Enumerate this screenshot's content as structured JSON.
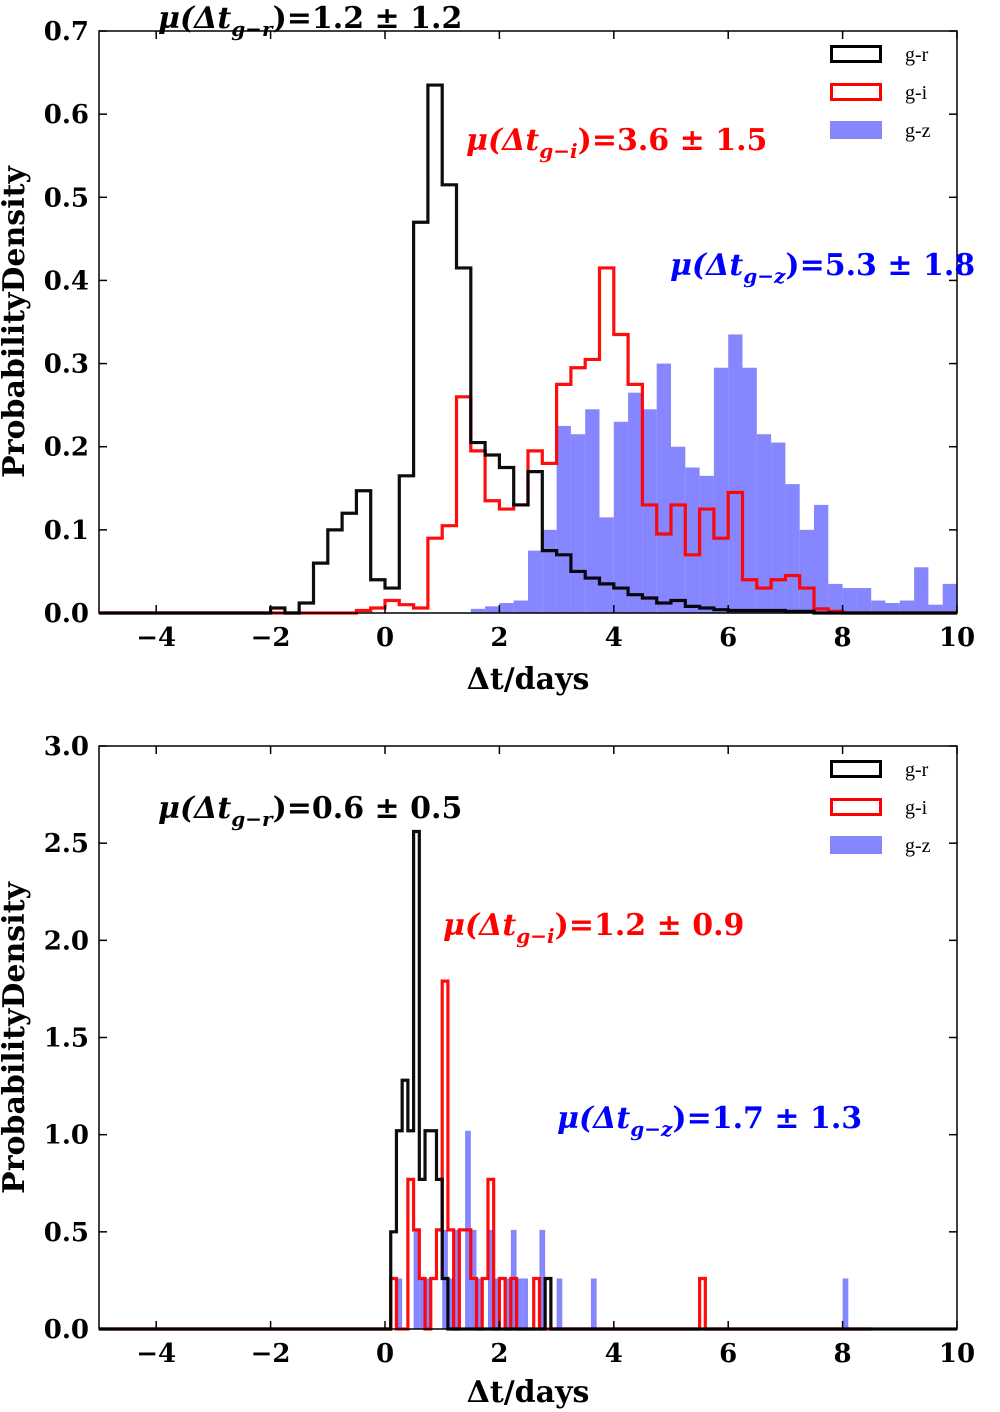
{
  "chart_data": [
    {
      "type": "histogram",
      "xlabel": "Δt/days",
      "ylabel": "ProbabilityDensity",
      "xlim": [
        -5,
        10
      ],
      "ylim": [
        0,
        0.7
      ],
      "xticks": [
        "−4",
        "−2",
        "0",
        "2",
        "4",
        "6",
        "8",
        "10"
      ],
      "yticks": [
        "0.0",
        "0.1",
        "0.2",
        "0.3",
        "0.4",
        "0.5",
        "0.6",
        "0.7"
      ],
      "legend": [
        "g-r",
        "g-i",
        "g-z"
      ],
      "colors": {
        "g-r": "#000000",
        "g-i": "#ff0000",
        "g-z": "#6b6bff"
      },
      "annotations": {
        "g-r": {
          "prefix": "μ(Δt",
          "sub": "g−r",
          "suffix": ")=1.2 ± 1.2"
        },
        "g-i": {
          "prefix": "μ(Δt",
          "sub": "g−i",
          "suffix": ")=3.6 ± 1.5"
        },
        "g-z": {
          "prefix": "μ(Δt",
          "sub": "g−z",
          "suffix": ")=5.3 ± 1.8"
        }
      },
      "series": [
        {
          "name": "g-r",
          "style": "step",
          "bins": [
            [
              -5.0,
              0.0
            ],
            [
              -2.0,
              0.006
            ],
            [
              -1.75,
              0.0
            ],
            [
              -1.5,
              0.012
            ],
            [
              -1.25,
              0.06
            ],
            [
              -1.0,
              0.1
            ],
            [
              -0.75,
              0.12
            ],
            [
              -0.5,
              0.147
            ],
            [
              -0.25,
              0.04
            ],
            [
              0.0,
              0.03
            ],
            [
              0.25,
              0.165
            ],
            [
              0.5,
              0.47
            ],
            [
              0.75,
              0.635
            ],
            [
              1.0,
              0.515
            ],
            [
              1.25,
              0.415
            ],
            [
              1.5,
              0.205
            ],
            [
              1.75,
              0.19
            ],
            [
              2.0,
              0.175
            ],
            [
              2.25,
              0.13
            ],
            [
              2.5,
              0.17
            ],
            [
              2.75,
              0.075
            ],
            [
              3.0,
              0.07
            ],
            [
              3.25,
              0.05
            ],
            [
              3.5,
              0.042
            ],
            [
              3.75,
              0.035
            ],
            [
              4.0,
              0.03
            ],
            [
              4.25,
              0.022
            ],
            [
              4.5,
              0.018
            ],
            [
              4.75,
              0.012
            ],
            [
              5.0,
              0.015
            ],
            [
              5.25,
              0.008
            ],
            [
              5.5,
              0.006
            ],
            [
              5.75,
              0.004
            ],
            [
              6.0,
              0.003
            ],
            [
              6.5,
              0.003
            ],
            [
              7.0,
              0.002
            ],
            [
              7.5,
              0.0
            ],
            [
              10.0,
              0.0
            ]
          ]
        },
        {
          "name": "g-i",
          "style": "step",
          "bins": [
            [
              -5.0,
              0.0
            ],
            [
              -0.5,
              0.003
            ],
            [
              -0.25,
              0.006
            ],
            [
              0.0,
              0.015
            ],
            [
              0.25,
              0.01
            ],
            [
              0.5,
              0.006
            ],
            [
              0.75,
              0.09
            ],
            [
              1.0,
              0.105
            ],
            [
              1.25,
              0.26
            ],
            [
              1.5,
              0.195
            ],
            [
              1.75,
              0.135
            ],
            [
              2.0,
              0.125
            ],
            [
              2.25,
              0.13
            ],
            [
              2.5,
              0.195
            ],
            [
              2.75,
              0.18
            ],
            [
              3.0,
              0.275
            ],
            [
              3.25,
              0.295
            ],
            [
              3.5,
              0.305
            ],
            [
              3.75,
              0.415
            ],
            [
              4.0,
              0.335
            ],
            [
              4.25,
              0.275
            ],
            [
              4.5,
              0.13
            ],
            [
              4.75,
              0.095
            ],
            [
              5.0,
              0.13
            ],
            [
              5.25,
              0.07
            ],
            [
              5.5,
              0.125
            ],
            [
              5.75,
              0.09
            ],
            [
              6.0,
              0.145
            ],
            [
              6.25,
              0.04
            ],
            [
              6.5,
              0.03
            ],
            [
              6.75,
              0.04
            ],
            [
              7.0,
              0.045
            ],
            [
              7.25,
              0.03
            ],
            [
              7.5,
              0.005
            ],
            [
              7.75,
              0.002
            ],
            [
              8.0,
              0.0
            ],
            [
              10.0,
              0.0
            ]
          ]
        },
        {
          "name": "g-z",
          "style": "filled",
          "bins": [
            [
              1.5,
              0.005
            ],
            [
              1.75,
              0.008
            ],
            [
              2.0,
              0.012
            ],
            [
              2.25,
              0.015
            ],
            [
              2.5,
              0.075
            ],
            [
              2.75,
              0.1
            ],
            [
              3.0,
              0.225
            ],
            [
              3.25,
              0.215
            ],
            [
              3.5,
              0.245
            ],
            [
              3.75,
              0.115
            ],
            [
              4.0,
              0.23
            ],
            [
              4.25,
              0.265
            ],
            [
              4.5,
              0.245
            ],
            [
              4.75,
              0.3
            ],
            [
              5.0,
              0.2
            ],
            [
              5.25,
              0.175
            ],
            [
              5.5,
              0.165
            ],
            [
              5.75,
              0.295
            ],
            [
              6.0,
              0.335
            ],
            [
              6.25,
              0.295
            ],
            [
              6.5,
              0.215
            ],
            [
              6.75,
              0.205
            ],
            [
              7.0,
              0.155
            ],
            [
              7.25,
              0.1
            ],
            [
              7.5,
              0.13
            ],
            [
              7.75,
              0.035
            ],
            [
              8.0,
              0.03
            ],
            [
              8.25,
              0.03
            ],
            [
              8.5,
              0.015
            ],
            [
              8.75,
              0.012
            ],
            [
              9.0,
              0.015
            ],
            [
              9.25,
              0.055
            ],
            [
              9.5,
              0.01
            ],
            [
              9.75,
              0.035
            ],
            [
              10.0,
              0.0
            ]
          ]
        }
      ]
    },
    {
      "type": "histogram",
      "xlabel": "Δt/days",
      "ylabel": "ProbabilityDensity",
      "xlim": [
        -5,
        10
      ],
      "ylim": [
        0,
        3.0
      ],
      "xticks": [
        "−4",
        "−2",
        "0",
        "2",
        "4",
        "6",
        "8",
        "10"
      ],
      "yticks": [
        "0.0",
        "0.5",
        "1.0",
        "1.5",
        "2.0",
        "2.5",
        "3.0"
      ],
      "legend": [
        "g-r",
        "g-i",
        "g-z"
      ],
      "colors": {
        "g-r": "#000000",
        "g-i": "#ff0000",
        "g-z": "#6b6bff"
      },
      "annotations": {
        "g-r": {
          "prefix": "μ(Δt",
          "sub": "g−r",
          "suffix": ")=0.6 ± 0.5"
        },
        "g-i": {
          "prefix": "μ(Δt",
          "sub": "g−i",
          "suffix": ")=1.2 ± 0.9"
        },
        "g-z": {
          "prefix": "μ(Δt",
          "sub": "g−z",
          "suffix": ")=1.7 ± 1.3"
        }
      },
      "series": [
        {
          "name": "g-r",
          "style": "step",
          "bins": [
            [
              -5.0,
              0.0
            ],
            [
              0.1,
              0.5
            ],
            [
              0.2,
              1.02
            ],
            [
              0.3,
              1.28
            ],
            [
              0.4,
              1.02
            ],
            [
              0.5,
              2.56
            ],
            [
              0.6,
              0.77
            ],
            [
              0.7,
              1.02
            ],
            [
              0.8,
              1.02
            ],
            [
              0.9,
              0.77
            ],
            [
              1.0,
              0.26
            ],
            [
              1.1,
              0.0
            ],
            [
              2.8,
              0.26
            ],
            [
              2.9,
              0.0
            ],
            [
              10.0,
              0.0
            ]
          ]
        },
        {
          "name": "g-i",
          "style": "step",
          "bins": [
            [
              -5.0,
              0.0
            ],
            [
              0.1,
              0.26
            ],
            [
              0.2,
              0.0
            ],
            [
              0.4,
              0.77
            ],
            [
              0.5,
              0.51
            ],
            [
              0.6,
              0.26
            ],
            [
              0.7,
              0.0
            ],
            [
              0.8,
              0.26
            ],
            [
              0.9,
              0.51
            ],
            [
              1.0,
              1.79
            ],
            [
              1.1,
              0.51
            ],
            [
              1.2,
              0.0
            ],
            [
              1.3,
              0.51
            ],
            [
              1.4,
              0.51
            ],
            [
              1.5,
              0.26
            ],
            [
              1.6,
              0.0
            ],
            [
              1.7,
              0.26
            ],
            [
              1.8,
              0.77
            ],
            [
              1.9,
              0.0
            ],
            [
              2.0,
              0.26
            ],
            [
              2.1,
              0.0
            ],
            [
              2.2,
              0.26
            ],
            [
              2.3,
              0.0
            ],
            [
              2.6,
              0.26
            ],
            [
              2.7,
              0.0
            ],
            [
              5.5,
              0.26
            ],
            [
              5.6,
              0.0
            ],
            [
              8.5,
              0.0
            ]
          ]
        },
        {
          "name": "g-z",
          "style": "filled",
          "bins": [
            [
              0.2,
              0.26
            ],
            [
              0.3,
              0.0
            ],
            [
              0.5,
              0.51
            ],
            [
              0.6,
              0.26
            ],
            [
              0.7,
              0.26
            ],
            [
              0.8,
              0.0
            ],
            [
              1.0,
              0.51
            ],
            [
              1.1,
              0.26
            ],
            [
              1.2,
              0.51
            ],
            [
              1.3,
              0.0
            ],
            [
              1.4,
              1.02
            ],
            [
              1.5,
              0.51
            ],
            [
              1.6,
              0.26
            ],
            [
              1.7,
              0.0
            ],
            [
              1.8,
              0.51
            ],
            [
              1.9,
              0.26
            ],
            [
              2.0,
              0.0
            ],
            [
              2.1,
              0.26
            ],
            [
              2.2,
              0.51
            ],
            [
              2.3,
              0.26
            ],
            [
              2.4,
              0.26
            ],
            [
              2.5,
              0.0
            ],
            [
              2.7,
              0.51
            ],
            [
              2.8,
              0.0
            ],
            [
              3.0,
              0.26
            ],
            [
              3.1,
              0.0
            ],
            [
              3.6,
              0.26
            ],
            [
              3.7,
              0.0
            ],
            [
              8.0,
              0.26
            ],
            [
              8.1,
              0.0
            ]
          ]
        }
      ]
    }
  ]
}
